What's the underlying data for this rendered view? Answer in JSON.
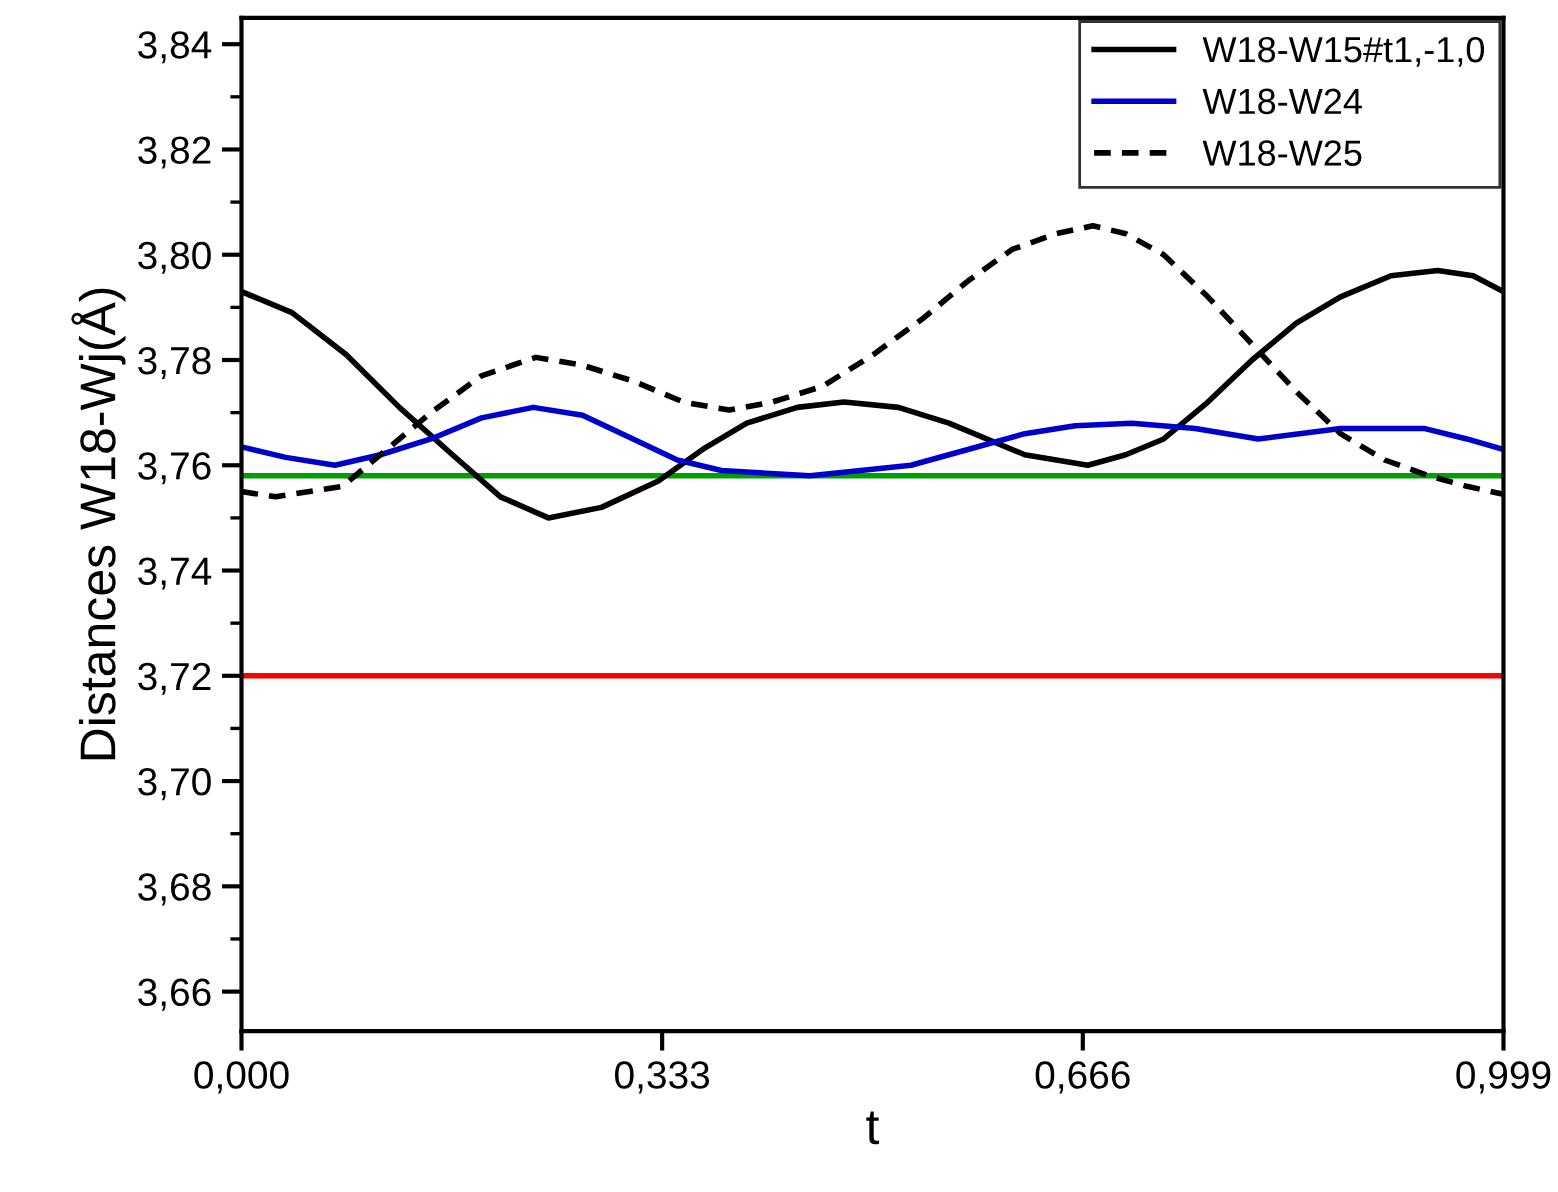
{
  "chart_data": {
    "type": "line",
    "xlabel": "t",
    "ylabel": "Distances W18-Wj(Å)",
    "xlim": [
      0,
      0.999
    ],
    "ylim": [
      3.6525,
      3.845
    ],
    "xticks": [
      {
        "value": 0,
        "label": "0,000"
      },
      {
        "value": 0.333,
        "label": "0,333"
      },
      {
        "value": 0.666,
        "label": "0,666"
      },
      {
        "value": 0.999,
        "label": "0,999"
      }
    ],
    "yticks": [
      {
        "value": 3.66,
        "label": "3,66"
      },
      {
        "value": 3.68,
        "label": "3,68"
      },
      {
        "value": 3.7,
        "label": "3,70"
      },
      {
        "value": 3.72,
        "label": "3,72"
      },
      {
        "value": 3.74,
        "label": "3,74"
      },
      {
        "value": 3.76,
        "label": "3,76"
      },
      {
        "value": 3.78,
        "label": "3,78"
      },
      {
        "value": 3.8,
        "label": "3,80"
      },
      {
        "value": 3.82,
        "label": "3,82"
      },
      {
        "value": 3.84,
        "label": "3,84"
      }
    ],
    "grid": false,
    "legend": "top right",
    "marker": "none",
    "series": [
      {
        "name": "W18-W15#t1,-1,0",
        "color": "#000000",
        "line_style": "solid",
        "x": [
          0,
          0.04,
          0.083,
          0.125,
          0.167,
          0.205,
          0.243,
          0.285,
          0.33,
          0.365,
          0.4,
          0.44,
          0.477,
          0.52,
          0.56,
          0.62,
          0.67,
          0.7,
          0.73,
          0.765,
          0.8,
          0.835,
          0.87,
          0.91,
          0.947,
          0.975,
          0.999
        ],
        "values": [
          3.793,
          3.789,
          3.781,
          3.771,
          3.762,
          3.754,
          3.75,
          3.752,
          3.757,
          3.763,
          3.768,
          3.771,
          3.772,
          3.771,
          3.768,
          3.762,
          3.76,
          3.762,
          3.765,
          3.772,
          3.78,
          3.787,
          3.792,
          3.796,
          3.797,
          3.796,
          3.793
        ]
      },
      {
        "name": "W18-W24",
        "color": "#0000cc",
        "line_style": "solid",
        "x": [
          0,
          0.035,
          0.074,
          0.11,
          0.15,
          0.19,
          0.231,
          0.27,
          0.31,
          0.345,
          0.38,
          0.45,
          0.53,
          0.575,
          0.62,
          0.66,
          0.705,
          0.755,
          0.805,
          0.87,
          0.936,
          0.97,
          0.999
        ],
        "values": [
          3.7635,
          3.7615,
          3.76,
          3.762,
          3.765,
          3.769,
          3.771,
          3.7695,
          3.765,
          3.761,
          3.759,
          3.758,
          3.76,
          3.763,
          3.766,
          3.7675,
          3.768,
          3.767,
          3.765,
          3.767,
          3.767,
          3.765,
          3.763
        ]
      },
      {
        "name": "W18-W25",
        "color": "#000000",
        "line_style": "dashed",
        "x": [
          0,
          0.027,
          0.08,
          0.115,
          0.15,
          0.19,
          0.233,
          0.27,
          0.31,
          0.35,
          0.386,
          0.42,
          0.46,
          0.5,
          0.54,
          0.575,
          0.61,
          0.645,
          0.674,
          0.7,
          0.73,
          0.765,
          0.8,
          0.835,
          0.87,
          0.905,
          0.94,
          0.97,
          0.999
        ],
        "values": [
          3.755,
          3.754,
          3.756,
          3.763,
          3.77,
          3.777,
          3.7805,
          3.779,
          3.776,
          3.772,
          3.7705,
          3.772,
          3.775,
          3.781,
          3.788,
          3.795,
          3.801,
          3.804,
          3.8055,
          3.804,
          3.8,
          3.792,
          3.783,
          3.774,
          3.766,
          3.761,
          3.758,
          3.756,
          3.7545
        ]
      }
    ],
    "ref_lines": [
      {
        "axis": "y",
        "value": 3.758,
        "color": "#00a000"
      },
      {
        "axis": "y",
        "value": 3.72,
        "color": "#ff0000"
      }
    ]
  }
}
